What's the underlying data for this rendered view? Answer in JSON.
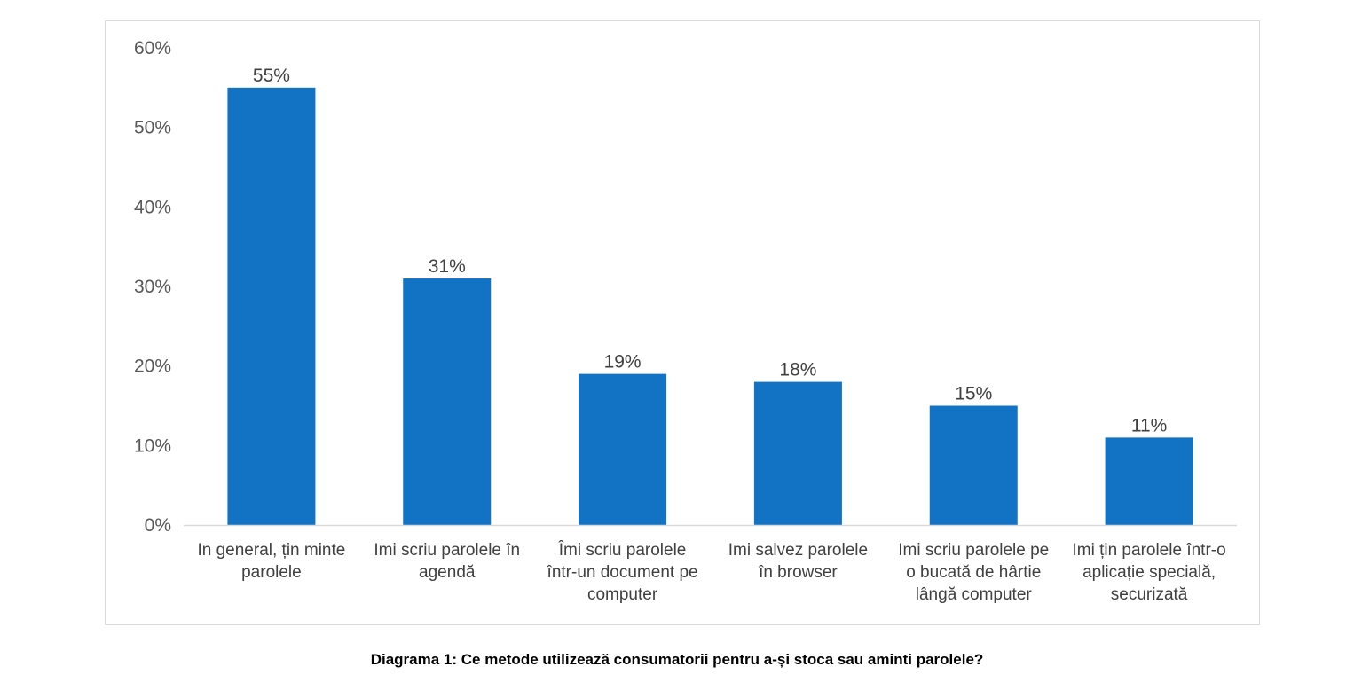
{
  "caption": "Diagrama 1: Ce metode utilizează consumatorii pentru a-și stoca sau aminti parolele?",
  "chart_data": {
    "type": "bar",
    "categories": [
      [
        "In general, țin minte",
        "parolele"
      ],
      [
        "Imi scriu parolele în",
        "agendă"
      ],
      [
        "Îmi scriu parolele",
        "într-un document pe",
        "computer"
      ],
      [
        "Imi salvez parolele",
        "în browser"
      ],
      [
        "Imi scriu parolele pe",
        "o bucată de hârtie",
        "lângă computer"
      ],
      [
        "Imi țin parolele într-o",
        "aplicație specială,",
        "securizată"
      ]
    ],
    "values": [
      55,
      31,
      19,
      18,
      15,
      11
    ],
    "value_labels": [
      "55%",
      "31%",
      "19%",
      "18%",
      "15%",
      "11%"
    ],
    "ylim": [
      0,
      60
    ],
    "y_ticks": [
      0,
      10,
      20,
      30,
      40,
      50,
      60
    ],
    "y_tick_labels": [
      "0%",
      "10%",
      "20%",
      "30%",
      "40%",
      "50%",
      "60%"
    ],
    "bar_color": "#1273c4",
    "axis_color": "#d9d9d9",
    "grid": false,
    "legend": "none",
    "title": "",
    "xlabel": "",
    "ylabel": ""
  }
}
